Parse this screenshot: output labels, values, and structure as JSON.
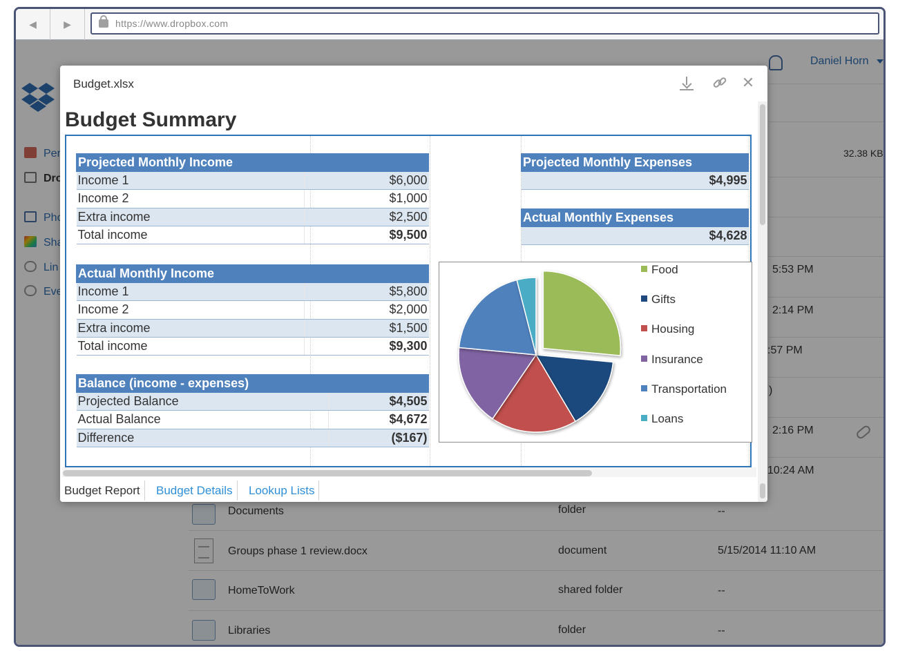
{
  "browser": {
    "url": "https://www.dropbox.com"
  },
  "page": {
    "user_name": "Daniel Horn",
    "sidebar": {
      "items": [
        {
          "label": "Per",
          "icon": "home-icon"
        },
        {
          "label": "Dro",
          "icon": "briefcase-icon"
        },
        {
          "label": "Pho",
          "icon": "photos-icon"
        },
        {
          "label": "Sha",
          "icon": "rainbow-icon"
        },
        {
          "label": "Lin",
          "icon": "link-icon"
        },
        {
          "label": "Eve",
          "icon": "events-icon"
        }
      ]
    },
    "partial_rows": {
      "size": "32.38 KB",
      "times": [
        "5:53 PM",
        "2:14 PM",
        ":57 PM",
        ")",
        "2:16 PM",
        "10:24 AM"
      ]
    },
    "files": [
      {
        "name": "Documents",
        "kind": "folder",
        "modified": "--",
        "icon": "folder-icon"
      },
      {
        "name": "Groups phase 1 review.docx",
        "kind": "document",
        "modified": "5/15/2014 11:10 AM",
        "icon": "document-icon"
      },
      {
        "name": "HomeToWork",
        "kind": "shared folder",
        "modified": "--",
        "icon": "shared-folder-icon"
      },
      {
        "name": "Libraries",
        "kind": "folder",
        "modified": "--",
        "icon": "folder-icon"
      }
    ]
  },
  "preview": {
    "filename": "Budget.xlsx",
    "sheet_title": "Budget Summary",
    "projected_income": {
      "header": "Projected Monthly Income",
      "rows": [
        {
          "label": "Income 1",
          "value": "$6,000"
        },
        {
          "label": "Income 2",
          "value": "$1,000"
        },
        {
          "label": "Extra income",
          "value": "$2,500"
        },
        {
          "label": "Total income",
          "value": "$9,500"
        }
      ]
    },
    "actual_income": {
      "header": "Actual Monthly Income",
      "rows": [
        {
          "label": "Income 1",
          "value": "$5,800"
        },
        {
          "label": "Income 2",
          "value": "$2,000"
        },
        {
          "label": "Extra income",
          "value": "$1,500"
        },
        {
          "label": "Total income",
          "value": "$9,300"
        }
      ]
    },
    "balance": {
      "header": "Balance (income - expenses)",
      "rows": [
        {
          "label": "Projected Balance",
          "value": "$4,505"
        },
        {
          "label": "Actual Balance",
          "value": "$4,672"
        },
        {
          "label": "Difference",
          "value": "($167)"
        }
      ]
    },
    "projected_expenses": {
      "header": "Projected Monthly Expenses",
      "value": "$4,995"
    },
    "actual_expenses": {
      "header": "Actual Monthly Expenses",
      "value": "$4,628"
    },
    "tabs": [
      {
        "label": "Budget Report",
        "active": true
      },
      {
        "label": "Budget Details",
        "active": false
      },
      {
        "label": "Lookup Lists",
        "active": false
      }
    ]
  },
  "colors": {
    "header_blue": "#4f81bd",
    "alt_row": "#dce6f1",
    "link_blue": "#2e8fd8"
  },
  "chart_data": {
    "type": "pie",
    "categories": [
      "Food",
      "Gifts",
      "Housing",
      "Insurance",
      "Transportation",
      "Loans"
    ],
    "values": [
      26.5,
      15,
      18,
      17,
      19.5,
      4
    ],
    "colors": [
      "#9bbb59",
      "#1f497d",
      "#c0504d",
      "#8064a2",
      "#4f81bd",
      "#4bacc6"
    ],
    "exploded": [
      "Food"
    ],
    "legend_position": "right"
  }
}
